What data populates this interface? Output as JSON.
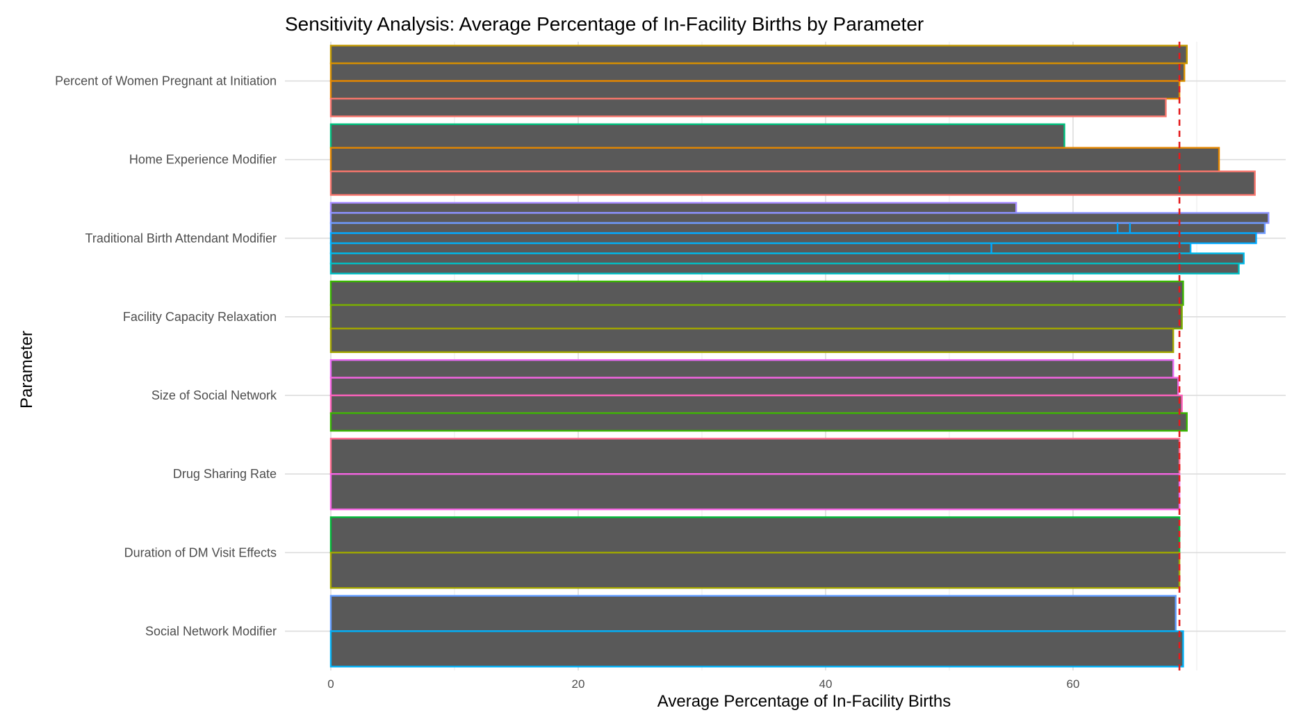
{
  "chart_data": {
    "type": "bar",
    "orientation": "horizontal",
    "title": "Sensitivity Analysis: Average Percentage of In-Facility Births by Parameter",
    "xlabel": "Average Percentage of In-Facility Births",
    "ylabel": "Parameter",
    "xlim": [
      -2.4,
      77
    ],
    "xticks": [
      0,
      20,
      40,
      60
    ],
    "grid": true,
    "legend": "none",
    "bar_fill": "#595959",
    "reference_line": {
      "value": 68.6,
      "color": "#e41a1c",
      "style": "dashed"
    },
    "categories": [
      "Percent of Women Pregnant at Initiation",
      "Home Experience Modifier",
      "Traditional Birth Attendant Modifier",
      "Facility Capacity Relaxation",
      "Size of Social Network",
      "Drug Sharing Rate",
      "Duration of DM Visit Effects",
      "Social Network Modifier"
    ],
    "groups": [
      {
        "parameter": "Percent of Women Pregnant at Initiation",
        "bars": [
          {
            "value": 69.2,
            "color": "#c49a00"
          },
          {
            "value": 69.0,
            "color": "#d89000"
          },
          {
            "value": 68.6,
            "color": "#e58700"
          },
          {
            "value": 67.5,
            "color": "#f8766d"
          }
        ]
      },
      {
        "parameter": "Home Experience Modifier",
        "bars": [
          {
            "value": 59.3,
            "color": "#00bf7d"
          },
          {
            "value": 71.8,
            "color": "#e58700"
          },
          {
            "value": 74.7,
            "color": "#f8766d"
          }
        ]
      },
      {
        "parameter": "Traditional Birth Attendant Modifier",
        "bars": [
          {
            "value": 55.4,
            "color": "#a58aff"
          },
          {
            "value": 75.8,
            "color": "#8b93ff"
          },
          {
            "value": 75.5,
            "color": "#6f9bff"
          },
          {
            "value": 74.8,
            "color": "#00a9ff"
          },
          {
            "value": 69.5,
            "color": "#00b0f6"
          },
          {
            "value": 73.8,
            "color": "#00b8e7"
          },
          {
            "value": 73.4,
            "color": "#00bfc4"
          }
        ]
      },
      {
        "parameter": "Facility Capacity Relaxation",
        "bars": [
          {
            "value": 68.9,
            "color": "#39b600"
          },
          {
            "value": 68.8,
            "color": "#7cae00"
          },
          {
            "value": 68.1,
            "color": "#a3a500"
          }
        ]
      },
      {
        "parameter": "Size of Social Network",
        "bars": [
          {
            "value": 68.1,
            "color": "#e76bf3"
          },
          {
            "value": 68.5,
            "color": "#f564e3"
          },
          {
            "value": 68.8,
            "color": "#ff62bc"
          },
          {
            "value": 69.2,
            "color": "#39b600"
          }
        ]
      },
      {
        "parameter": "Drug Sharing Rate",
        "bars": [
          {
            "value": 68.6,
            "color": "#ff6c91"
          },
          {
            "value": 68.6,
            "color": "#f564e3"
          }
        ]
      },
      {
        "parameter": "Duration of DM Visit Effects",
        "bars": [
          {
            "value": 68.6,
            "color": "#00ba38"
          },
          {
            "value": 68.6,
            "color": "#a3a500"
          }
        ]
      },
      {
        "parameter": "Social Network Modifier",
        "bars": [
          {
            "value": 68.3,
            "color": "#619cff"
          },
          {
            "value": 68.9,
            "color": "#00b0f6"
          }
        ]
      }
    ],
    "inner_segments": [
      {
        "parameter": "Traditional Birth Attendant Modifier",
        "bar_index": 2,
        "value": 63.6,
        "color": "#00a9ff"
      },
      {
        "parameter": "Traditional Birth Attendant Modifier",
        "bar_index": 2,
        "value": 64.6,
        "color": "#00a9ff"
      },
      {
        "parameter": "Traditional Birth Attendant Modifier",
        "bar_index": 4,
        "value": 53.4,
        "color": "#00a9ff"
      }
    ]
  }
}
